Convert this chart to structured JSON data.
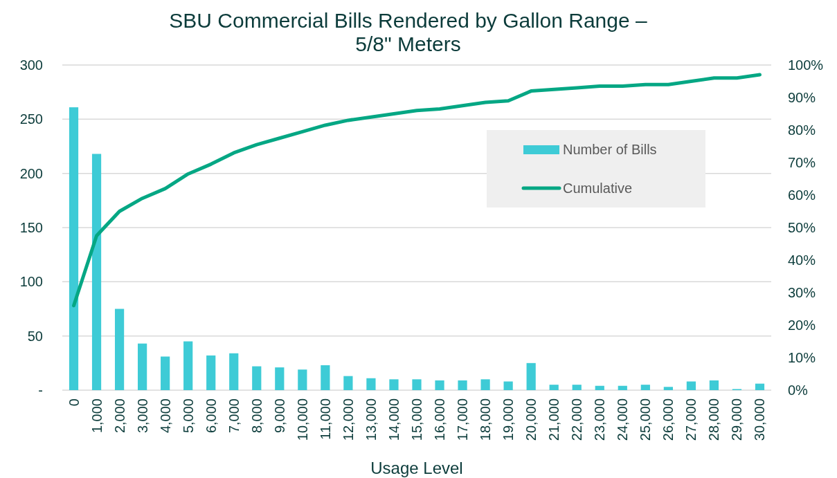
{
  "chart_data": {
    "type": "bar",
    "title": "SBU Commercial Bills Rendered by Gallon Range –\n5/8\" Meters",
    "xlabel": "Usage Level",
    "categories": [
      "0",
      "1,000",
      "2,000",
      "3,000",
      "4,000",
      "5,000",
      "6,000",
      "7,000",
      "8,000",
      "9,000",
      "10,000",
      "11,000",
      "12,000",
      "13,000",
      "14,000",
      "15,000",
      "16,000",
      "17,000",
      "18,000",
      "19,000",
      "20,000",
      "21,000",
      "22,000",
      "23,000",
      "24,000",
      "25,000",
      "26,000",
      "27,000",
      "28,000",
      "29,000",
      "30,000"
    ],
    "series": [
      {
        "name": "Number of Bills",
        "color": "#3ecbd6",
        "values": [
          261,
          218,
          75,
          43,
          31,
          45,
          32,
          34,
          22,
          21,
          19,
          23,
          13,
          11,
          10,
          10,
          9,
          9,
          10,
          8,
          25,
          5,
          5,
          4,
          4,
          5,
          3,
          8,
          9,
          1,
          6
        ]
      },
      {
        "name": "Cumulative",
        "type": "line",
        "axis": "y2",
        "color": "#05a784",
        "values": [
          26,
          47.5,
          55,
          59,
          62,
          66.5,
          69.5,
          73,
          75.5,
          77.5,
          79.5,
          81.5,
          83,
          84,
          85,
          86,
          86.5,
          87.5,
          88.5,
          89,
          92,
          92.5,
          93,
          93.5,
          93.5,
          94,
          94,
          95,
          96,
          96,
          97
        ]
      }
    ],
    "ylim": [
      0,
      300
    ],
    "yticks": [
      {
        "value": 0,
        "label": "-"
      },
      50,
      100,
      150,
      200,
      250,
      300
    ],
    "y2lim": [
      0,
      100
    ],
    "y2ticks": [
      {
        "value": 0,
        "label": "0%"
      },
      {
        "value": 10,
        "label": "10%"
      },
      {
        "value": 20,
        "label": "20%"
      },
      {
        "value": 30,
        "label": "30%"
      },
      {
        "value": 40,
        "label": "40%"
      },
      {
        "value": 50,
        "label": "50%"
      },
      {
        "value": 60,
        "label": "60%"
      },
      {
        "value": 70,
        "label": "70%"
      },
      {
        "value": 80,
        "label": "80%"
      },
      {
        "value": 90,
        "label": "90%"
      },
      {
        "value": 100,
        "label": "100%"
      }
    ],
    "grid": "y",
    "legend": "right"
  }
}
